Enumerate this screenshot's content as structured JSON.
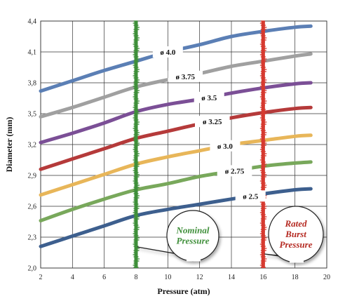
{
  "chart_data": {
    "type": "line",
    "title": "",
    "xlabel": "Pressure (atm)",
    "ylabel": "Diameter (mm)",
    "xlim": [
      2,
      20
    ],
    "ylim": [
      2.0,
      4.4
    ],
    "x_ticks": [
      2,
      4,
      6,
      8,
      10,
      12,
      14,
      16,
      18,
      20
    ],
    "y_ticks": [
      2.0,
      2.3,
      2.6,
      2.9,
      3.2,
      3.5,
      3.8,
      4.1,
      4.4
    ],
    "x_tick_labels": [
      "2",
      "4",
      "6",
      "8",
      "10",
      "12",
      "14",
      "16",
      "18",
      "20"
    ],
    "y_tick_labels": [
      "2,0",
      "2,3",
      "2,6",
      "2,9",
      "3,2",
      "3,5",
      "3,8",
      "4,1",
      "4,4"
    ],
    "grid": true,
    "x": [
      2,
      4,
      6,
      8,
      10,
      12,
      14,
      16,
      18,
      19
    ],
    "series": [
      {
        "name": "ø 4.0",
        "color": "#5b7fb5",
        "values": [
          3.72,
          3.82,
          3.92,
          4.01,
          4.1,
          4.17,
          4.25,
          4.3,
          4.34,
          4.35
        ]
      },
      {
        "name": "ø 3.75",
        "color": "#a0a0a0",
        "values": [
          3.47,
          3.56,
          3.66,
          3.76,
          3.83,
          3.89,
          3.96,
          4.01,
          4.06,
          4.08
        ]
      },
      {
        "name": "ø 3.5",
        "color": "#7b4f96",
        "values": [
          3.22,
          3.31,
          3.41,
          3.52,
          3.59,
          3.64,
          3.7,
          3.75,
          3.79,
          3.8
        ]
      },
      {
        "name": "ø 3.25",
        "color": "#b53a3a",
        "values": [
          2.96,
          3.06,
          3.16,
          3.26,
          3.33,
          3.4,
          3.46,
          3.51,
          3.55,
          3.56
        ]
      },
      {
        "name": "ø 3.0",
        "color": "#e8b659",
        "values": [
          2.71,
          2.81,
          2.91,
          3.01,
          3.08,
          3.14,
          3.2,
          3.24,
          3.28,
          3.29
        ]
      },
      {
        "name": "ø 2.75",
        "color": "#78a85b",
        "values": [
          2.46,
          2.57,
          2.67,
          2.76,
          2.82,
          2.89,
          2.94,
          2.99,
          3.02,
          3.03
        ]
      },
      {
        "name": "ø 2.5",
        "color": "#3d5f8e",
        "values": [
          2.21,
          2.31,
          2.41,
          2.51,
          2.57,
          2.62,
          2.67,
          2.72,
          2.76,
          2.77
        ]
      }
    ],
    "label_x": [
      10,
      11.1,
      12.6,
      12.8,
      13.6,
      14.2,
      15.2
    ],
    "reference_lines": [
      {
        "x": 8,
        "color": "#3f8f3a",
        "callout": [
          "Nominal",
          "Pressure"
        ],
        "callout_color": "#3f8f3a"
      },
      {
        "x": 16,
        "color": "#d63a30",
        "callout": [
          "Rated",
          "Burst",
          "Pressure"
        ],
        "callout_color": "#b52a22"
      }
    ]
  }
}
